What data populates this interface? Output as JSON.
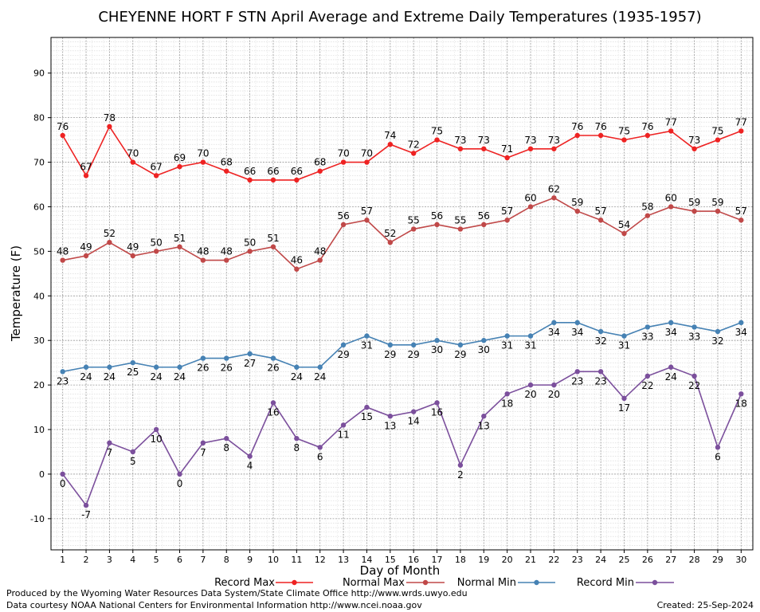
{
  "chart_data": {
    "type": "line",
    "title": "CHEYENNE HORT F STN April Average and Extreme Daily Temperatures (1935-1957)",
    "xlabel": "Day of Month",
    "ylabel": "Temperature (F)",
    "x": [
      1,
      2,
      3,
      4,
      5,
      6,
      7,
      8,
      9,
      10,
      11,
      12,
      13,
      14,
      15,
      16,
      17,
      18,
      19,
      20,
      21,
      22,
      23,
      24,
      25,
      26,
      27,
      28,
      29,
      30
    ],
    "xlim": [
      0.5,
      30.5
    ],
    "ylim": [
      -17,
      98
    ],
    "yticks": [
      -10,
      0,
      10,
      20,
      30,
      40,
      50,
      60,
      70,
      80,
      90
    ],
    "grid": true,
    "legend_position": "bottom",
    "series": [
      {
        "name": "Record Max",
        "color": "#ee2222",
        "label_position": "above",
        "values": [
          76,
          67,
          78,
          70,
          67,
          69,
          70,
          68,
          66,
          66,
          66,
          68,
          70,
          70,
          74,
          72,
          75,
          73,
          73,
          71,
          73,
          73,
          76,
          76,
          75,
          76,
          77,
          73,
          75,
          77
        ]
      },
      {
        "name": "Normal Max",
        "color": "#c04848",
        "label_position": "above",
        "values": [
          48,
          49,
          52,
          49,
          50,
          51,
          48,
          48,
          50,
          51,
          46,
          48,
          56,
          57,
          52,
          55,
          56,
          55,
          56,
          57,
          60,
          62,
          59,
          57,
          54,
          58,
          60,
          59,
          59,
          57
        ]
      },
      {
        "name": "Normal Min",
        "color": "#4682b4",
        "label_position": "below",
        "values": [
          23,
          24,
          24,
          25,
          24,
          24,
          26,
          26,
          27,
          26,
          24,
          24,
          29,
          31,
          29,
          29,
          30,
          29,
          30,
          31,
          31,
          34,
          34,
          32,
          31,
          33,
          34,
          33,
          32,
          34
        ]
      },
      {
        "name": "Record Min",
        "color": "#7b4f9c",
        "label_position": "below",
        "values": [
          0,
          -7,
          7,
          5,
          10,
          0,
          7,
          8,
          4,
          16,
          8,
          6,
          11,
          15,
          13,
          14,
          16,
          2,
          13,
          18,
          20,
          20,
          23,
          23,
          17,
          22,
          24,
          22,
          6,
          18
        ]
      }
    ]
  },
  "footer": {
    "produced_by": "Produced by the Wyoming Water Resources Data System/State Climate Office http://www.wrds.uwyo.edu",
    "data_courtesy": "Data courtesy NOAA National Centers for Environmental Information http://www.ncei.noaa.gov",
    "created": "Created:  25-Sep-2024"
  }
}
